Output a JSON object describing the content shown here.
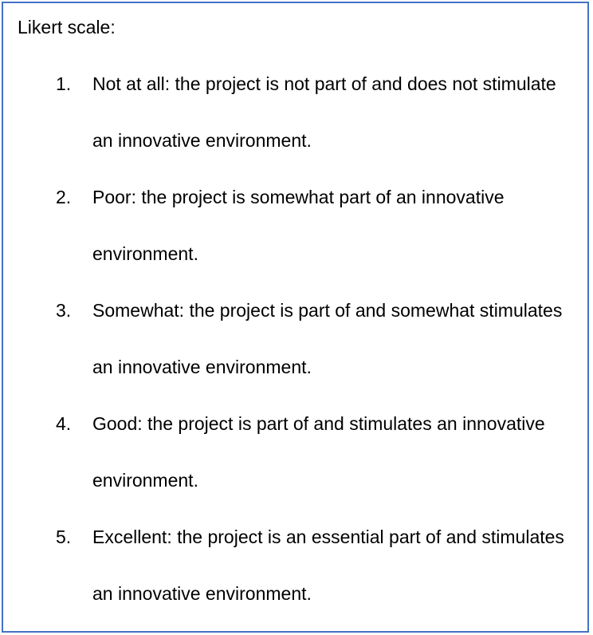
{
  "document": {
    "heading": "Likert scale:",
    "items": [
      {
        "number": "1.",
        "text": "Not at all: the project is not part of and does not stimulate an innovative environment."
      },
      {
        "number": "2.",
        "text": "Poor: the project is somewhat part of an innovative environment."
      },
      {
        "number": "3.",
        "text": "Somewhat: the project is part of and somewhat stimulates an innovative environment."
      },
      {
        "number": "4.",
        "text": "Good: the project is part of and stimulates an innovative environment."
      },
      {
        "number": "5.",
        "text": "Excellent: the project is an essential part of and stimulates an innovative environment."
      }
    ],
    "colors": {
      "border": "#4472c4",
      "text": "#000000",
      "background": "#ffffff"
    }
  }
}
